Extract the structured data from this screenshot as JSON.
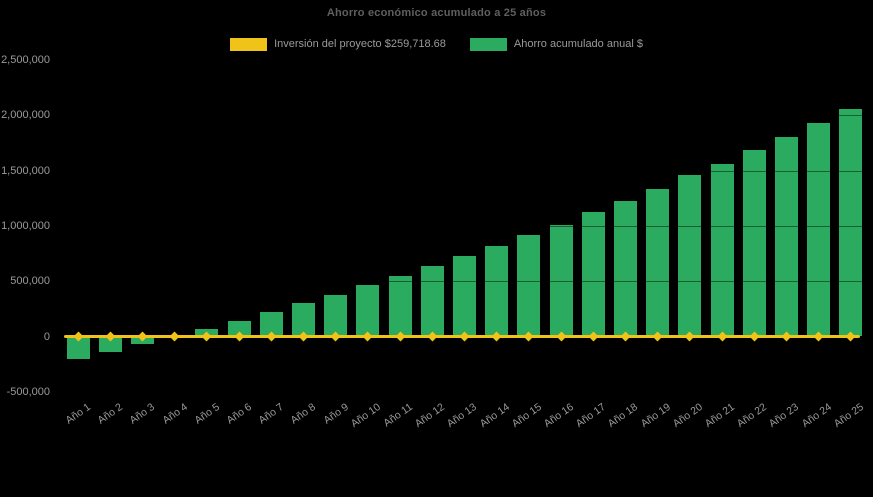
{
  "title": "Ahorro económico acumulado a 25 años",
  "colors": {
    "background": "#000000",
    "bar_green": "#2aab5f",
    "line_yellow": "#f0c319",
    "title_text": "#5f5f5f",
    "axis_text": "#9a9a9a"
  },
  "legend": {
    "investment": {
      "label": "Inversión del proyecto $259,718.68",
      "color": "#f0c319"
    },
    "savings": {
      "label": "Ahorro acumulado anual $",
      "color": "#2aab5f"
    }
  },
  "chart_data": {
    "type": "bar",
    "title": "Ahorro económico acumulado a 25 años",
    "categories": [
      "Año 1",
      "Año 2",
      "Año 3",
      "Año 4",
      "Año 5",
      "Año 6",
      "Año 7",
      "Año 8",
      "Año 9",
      "Año 10",
      "Año 11",
      "Año 12",
      "Año 13",
      "Año 14",
      "Año 15",
      "Año 16",
      "Año 17",
      "Año 18",
      "Año 19",
      "Año 20",
      "Año 21",
      "Año 22",
      "Año 23",
      "Año 24",
      "Año 25"
    ],
    "series": [
      {
        "name": "Ahorro acumulado anual $",
        "type": "bar",
        "color": "#2aab5f",
        "values": [
          -205000,
          -140000,
          -70000,
          5000,
          70000,
          140000,
          220000,
          300000,
          375000,
          465000,
          545000,
          635000,
          730000,
          820000,
          920000,
          1010000,
          1125000,
          1225000,
          1335000,
          1455000,
          1560000,
          1685000,
          1800000,
          1930000,
          2055000
        ]
      },
      {
        "name": "Inversión del proyecto $259,718.68",
        "type": "line",
        "color": "#f0c319",
        "marker": "diamond",
        "constant_value": 0
      }
    ],
    "xlabel": "",
    "ylabel": "",
    "ylim": [
      -500000,
      2500000
    ],
    "y_tick_labels": [
      "2,500,000",
      "2,000,000",
      "1,500,000",
      "1,000,000",
      "500,000",
      "0",
      "-500,000"
    ],
    "grid": false,
    "legend_position": "top",
    "background": "#000000"
  }
}
